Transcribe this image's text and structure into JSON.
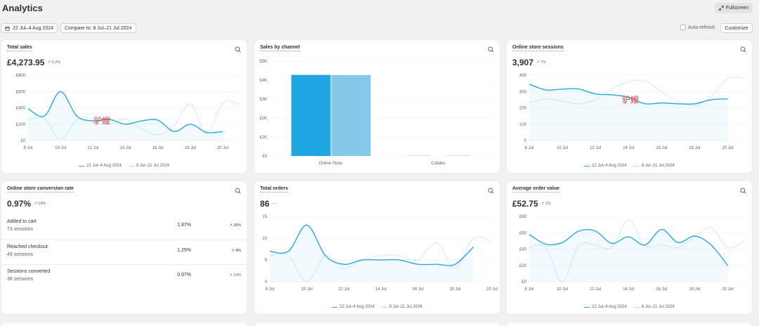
{
  "page": {
    "title": "Analytics",
    "fullscreen_label": "Fullscreen",
    "date_range_label": "22 Jul–4 Aug 2024",
    "compare_label": "Compare to: 8 Jul–21 Jul 2024",
    "auto_refresh_label": "Auto-refresh",
    "customize_label": "Customize"
  },
  "legend": {
    "current": "22 Jul–4 Aug 2024",
    "previous": "8 Jul–21 Jul 2024"
  },
  "watermark": "驴嫂",
  "colors": {
    "primary_line": "#2aa7e0",
    "compare_line": "#8dcfe8",
    "bar_dark": "#1ea6e3",
    "bar_light": "#85c9e8",
    "up": "#1a8a4a"
  },
  "cards": {
    "total_sales": {
      "title": "Total sales",
      "value": "£4,273.95",
      "change": "0.2%"
    },
    "sales_by_channel": {
      "title": "Sales by channel"
    },
    "online_store_sessions": {
      "title": "Online store sessions",
      "value": "3,907",
      "change": "7%"
    },
    "conversion_rate": {
      "title": "Online store conversion rate",
      "value": "0.97%",
      "change": "14%",
      "rows": [
        {
          "label": "Added to cart",
          "sessions": "73 sessions",
          "pct": "1.87%",
          "change": "20%"
        },
        {
          "label": "Reached checkout",
          "sessions": "49 sessions",
          "pct": "1.25%",
          "change": "4%"
        },
        {
          "label": "Sessions converted",
          "sessions": "38 sessions",
          "pct": "0.97%",
          "change": "14%"
        }
      ]
    },
    "total_orders": {
      "title": "Total orders",
      "value": "86",
      "change": "—"
    },
    "average_order_value": {
      "title": "Average order value",
      "value": "£52.75",
      "change": "1%"
    }
  },
  "chart_data": [
    {
      "id": "total_sales",
      "type": "line",
      "x_ticks": [
        "8 Jul",
        "10 Jul",
        "12 Jul",
        "14 Jul",
        "16 Jul",
        "18 Jul",
        "20 Jul"
      ],
      "y_ticks": [
        "£0",
        "£200",
        "£400",
        "£600",
        "£800"
      ],
      "ylim": [
        0,
        800
      ],
      "series": [
        {
          "name": "22 Jul–4 Aug 2024",
          "style": "solid",
          "values": [
            390,
            300,
            600,
            300,
            240,
            260,
            200,
            240,
            250,
            110,
            200,
            100,
            110
          ]
        },
        {
          "name": "8 Jul–21 Jul 2024",
          "style": "dotted",
          "values": [
            250,
            270,
            10,
            250,
            270,
            200,
            260,
            140,
            70,
            180,
            450,
            80,
            460,
            450
          ]
        }
      ]
    },
    {
      "id": "sales_by_channel",
      "type": "bar",
      "categories": [
        "Online Store",
        "Collabs"
      ],
      "y_ticks": [
        "£0",
        "£1K",
        "£2K",
        "£3K",
        "£4K",
        "£5K"
      ],
      "ylim": [
        0,
        5000
      ],
      "series": [
        {
          "name": "22 Jul–4 Aug 2024",
          "values": [
            4273.95,
            0
          ]
        },
        {
          "name": "8 Jul–21 Jul 2024",
          "values": [
            4265,
            0
          ]
        }
      ]
    },
    {
      "id": "online_store_sessions",
      "type": "line",
      "x_ticks": [
        "8 Jul",
        "10 Jul",
        "12 Jul",
        "14 Jul",
        "16 Jul",
        "18 Jul",
        "20 Jul"
      ],
      "y_ticks": [
        "0",
        "100",
        "200",
        "300",
        "400"
      ],
      "ylim": [
        0,
        400
      ],
      "series": [
        {
          "name": "22 Jul–4 Aug 2024",
          "style": "solid",
          "values": [
            345,
            310,
            315,
            315,
            285,
            280,
            265,
            225,
            230,
            225,
            225,
            250,
            255
          ]
        },
        {
          "name": "8 Jul–21 Jul 2024",
          "style": "dotted",
          "values": [
            230,
            255,
            240,
            225,
            250,
            315,
            360,
            365,
            300,
            240,
            215,
            270,
            380,
            380
          ]
        }
      ]
    },
    {
      "id": "total_orders",
      "type": "line",
      "x_ticks": [
        "8 Jul",
        "10 Jul",
        "12 Jul",
        "14 Jul",
        "16 Jul",
        "18 Jul",
        "20 Jul"
      ],
      "y_ticks": [
        "0",
        "5",
        "10",
        "15"
      ],
      "ylim": [
        0,
        15
      ],
      "series": [
        {
          "name": "22 Jul–4 Aug 2024",
          "style": "solid",
          "values": [
            7,
            7,
            13,
            6,
            4,
            5,
            5,
            5,
            4,
            4,
            4,
            8
          ]
        },
        {
          "name": "8 Jul–21 Jul 2024",
          "style": "dotted",
          "values": [
            6,
            6,
            0,
            6,
            3,
            5,
            6,
            6,
            5,
            9,
            3,
            10,
            9
          ]
        }
      ]
    },
    {
      "id": "average_order_value",
      "type": "line",
      "x_ticks": [
        "8 Jul",
        "10 Jul",
        "12 Jul",
        "14 Jul",
        "16 Jul",
        "18 Jul",
        "20 Jul"
      ],
      "y_ticks": [
        "£0",
        "£20",
        "£40",
        "£60",
        "£80"
      ],
      "ylim": [
        0,
        80
      ],
      "series": [
        {
          "name": "22 Jul–4 Aug 2024",
          "style": "solid",
          "values": [
            58,
            46,
            48,
            62,
            62,
            47,
            55,
            45,
            64,
            48,
            56,
            45,
            20
          ]
        },
        {
          "name": "8 Jul–21 Jul 2024",
          "style": "dotted",
          "values": [
            42,
            42,
            0,
            44,
            45,
            42,
            76,
            44,
            45,
            42,
            55,
            66,
            42,
            50
          ]
        }
      ]
    }
  ]
}
